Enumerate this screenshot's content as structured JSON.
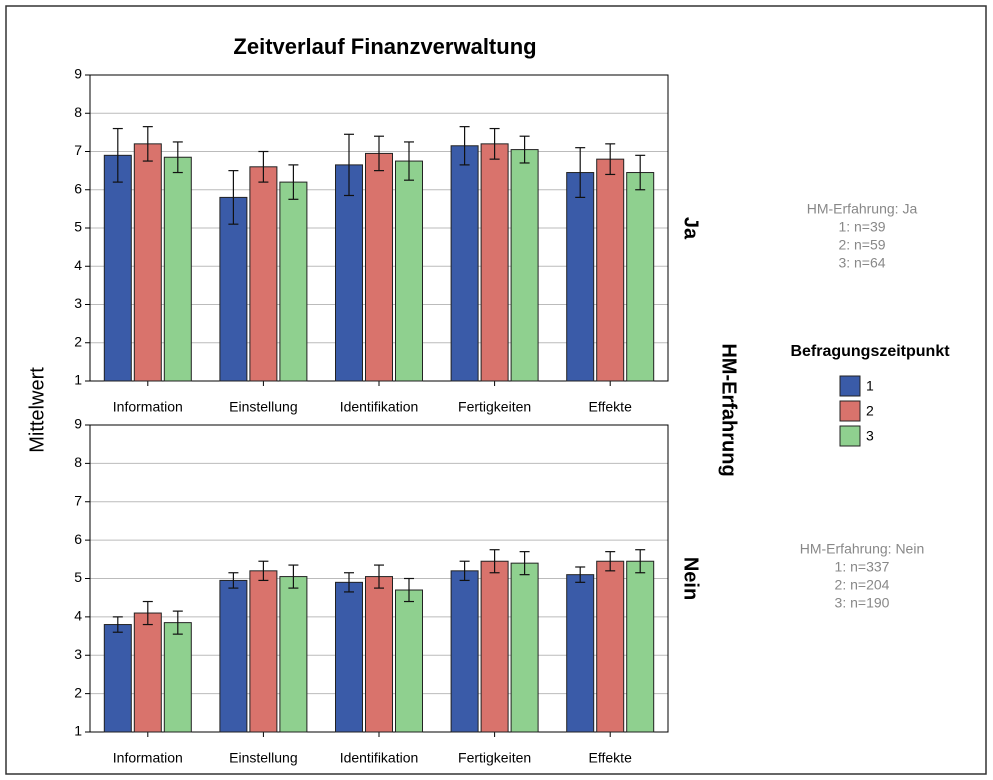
{
  "title": "Zeitverlauf Finanzverwaltung",
  "y_label": "Mittelwert",
  "facet_label": "HM-Erfahrung",
  "legend_title": "Befragungszeitpunkt",
  "chart_data": [
    {
      "type": "bar",
      "facet": "Ja",
      "categories": [
        "Information",
        "Einstellung",
        "Identifikation",
        "Fertigkeiten",
        "Effekte"
      ],
      "series": [
        {
          "name": "1",
          "color": "#3a5ba8",
          "values": [
            6.9,
            5.8,
            6.65,
            7.15,
            6.45
          ],
          "errors": [
            0.7,
            0.7,
            0.8,
            0.5,
            0.65
          ]
        },
        {
          "name": "2",
          "color": "#d9736c",
          "values": [
            7.2,
            6.6,
            6.95,
            7.2,
            6.8
          ],
          "errors": [
            0.45,
            0.4,
            0.45,
            0.4,
            0.4
          ]
        },
        {
          "name": "3",
          "color": "#8fd08f",
          "values": [
            6.85,
            6.2,
            6.75,
            7.05,
            6.45
          ],
          "errors": [
            0.4,
            0.45,
            0.5,
            0.35,
            0.45
          ]
        }
      ],
      "ylim": [
        1,
        9
      ],
      "yticks": [
        1,
        2,
        3,
        4,
        5,
        6,
        7,
        8,
        9
      ],
      "grid": true,
      "note": [
        "HM-Erfahrung: Ja",
        "1: n=39",
        "2: n=59",
        "3: n=64"
      ]
    },
    {
      "type": "bar",
      "facet": "Nein",
      "categories": [
        "Information",
        "Einstellung",
        "Identifikation",
        "Fertigkeiten",
        "Effekte"
      ],
      "series": [
        {
          "name": "1",
          "color": "#3a5ba8",
          "values": [
            3.8,
            4.95,
            4.9,
            5.2,
            5.1
          ],
          "errors": [
            0.2,
            0.2,
            0.25,
            0.25,
            0.2
          ]
        },
        {
          "name": "2",
          "color": "#d9736c",
          "values": [
            4.1,
            5.2,
            5.05,
            5.45,
            5.45
          ],
          "errors": [
            0.3,
            0.25,
            0.3,
            0.3,
            0.25
          ]
        },
        {
          "name": "3",
          "color": "#8fd08f",
          "values": [
            3.85,
            5.05,
            4.7,
            5.4,
            5.45
          ],
          "errors": [
            0.3,
            0.3,
            0.3,
            0.3,
            0.3
          ]
        }
      ],
      "ylim": [
        1,
        9
      ],
      "yticks": [
        1,
        2,
        3,
        4,
        5,
        6,
        7,
        8,
        9
      ],
      "grid": true,
      "note": [
        "HM-Erfahrung: Nein",
        "1: n=337",
        "2: n=204",
        "3: n=190"
      ]
    }
  ]
}
